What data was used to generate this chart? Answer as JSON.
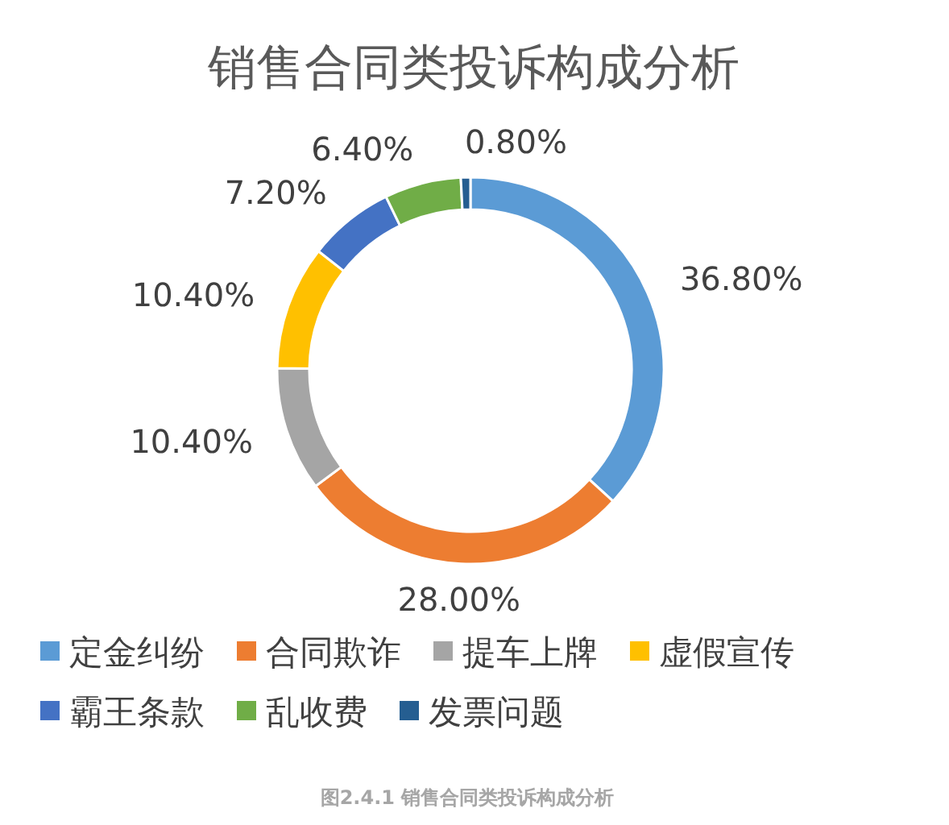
{
  "chart_data": {
    "type": "donut",
    "title": "销售合同类投诉构成分析",
    "categories": [
      "定金纠纷",
      "合同欺诈",
      "提车上牌",
      "虚假宣传",
      "霸王条款",
      "乱收费",
      "发票问题"
    ],
    "values": [
      36.8,
      28.0,
      10.4,
      10.4,
      7.2,
      6.4,
      0.8
    ],
    "value_labels": [
      "36.80%",
      "28.00%",
      "10.40%",
      "10.40%",
      "7.20%",
      "6.40%",
      "0.80%"
    ],
    "colors": [
      "#5b9bd5",
      "#ed7d31",
      "#a5a5a5",
      "#ffc000",
      "#4472c4",
      "#70ad47",
      "#255e91"
    ],
    "legend": "bottom",
    "annotations": [
      "图2.4.1  销售合同类投诉构成分析"
    ]
  }
}
